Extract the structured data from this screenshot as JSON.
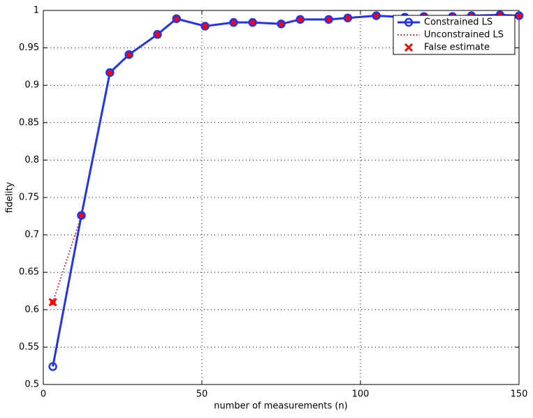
{
  "chart_data": {
    "type": "line",
    "xlabel": "number of measurements (n)",
    "ylabel": "fidelity",
    "x": [
      3,
      12,
      21,
      27,
      36,
      42,
      51,
      60,
      66,
      75,
      81,
      90,
      96,
      105,
      114,
      120,
      129,
      135,
      144,
      150
    ],
    "series": [
      {
        "name": "Unconstrained LS",
        "color": "#ff0000",
        "style": "dotted",
        "values": [
          0.61,
          0.726,
          0.917,
          0.941,
          0.968,
          0.989,
          0.979,
          0.984,
          0.984,
          0.982,
          0.988,
          0.988,
          0.99,
          0.993,
          0.991,
          0.992,
          0.992,
          0.993,
          0.994,
          0.993
        ]
      },
      {
        "name": "Constrained LS",
        "color": "#2233ee",
        "style": "solid",
        "values": [
          0.524,
          0.726,
          0.917,
          0.941,
          0.968,
          0.989,
          0.979,
          0.984,
          0.984,
          0.982,
          0.988,
          0.988,
          0.99,
          0.993,
          0.991,
          0.992,
          0.992,
          0.993,
          0.994,
          0.993
        ]
      },
      {
        "name": "False estimate",
        "color": "#ff0000",
        "style": "marker",
        "values": [
          0.61,
          null,
          null,
          null,
          null,
          null,
          null,
          null,
          null,
          null,
          null,
          null,
          null,
          null,
          null,
          null,
          null,
          null,
          null,
          null
        ]
      }
    ],
    "xlim": [
      0,
      150
    ],
    "xticks": [
      0,
      50,
      100,
      150
    ],
    "ylim": [
      0.5,
      1
    ],
    "yticks": [
      0.5,
      0.55,
      0.6,
      0.65,
      0.7,
      0.75,
      0.8,
      0.85,
      0.9,
      0.95,
      1
    ],
    "grid": true,
    "legend": "upper right"
  }
}
